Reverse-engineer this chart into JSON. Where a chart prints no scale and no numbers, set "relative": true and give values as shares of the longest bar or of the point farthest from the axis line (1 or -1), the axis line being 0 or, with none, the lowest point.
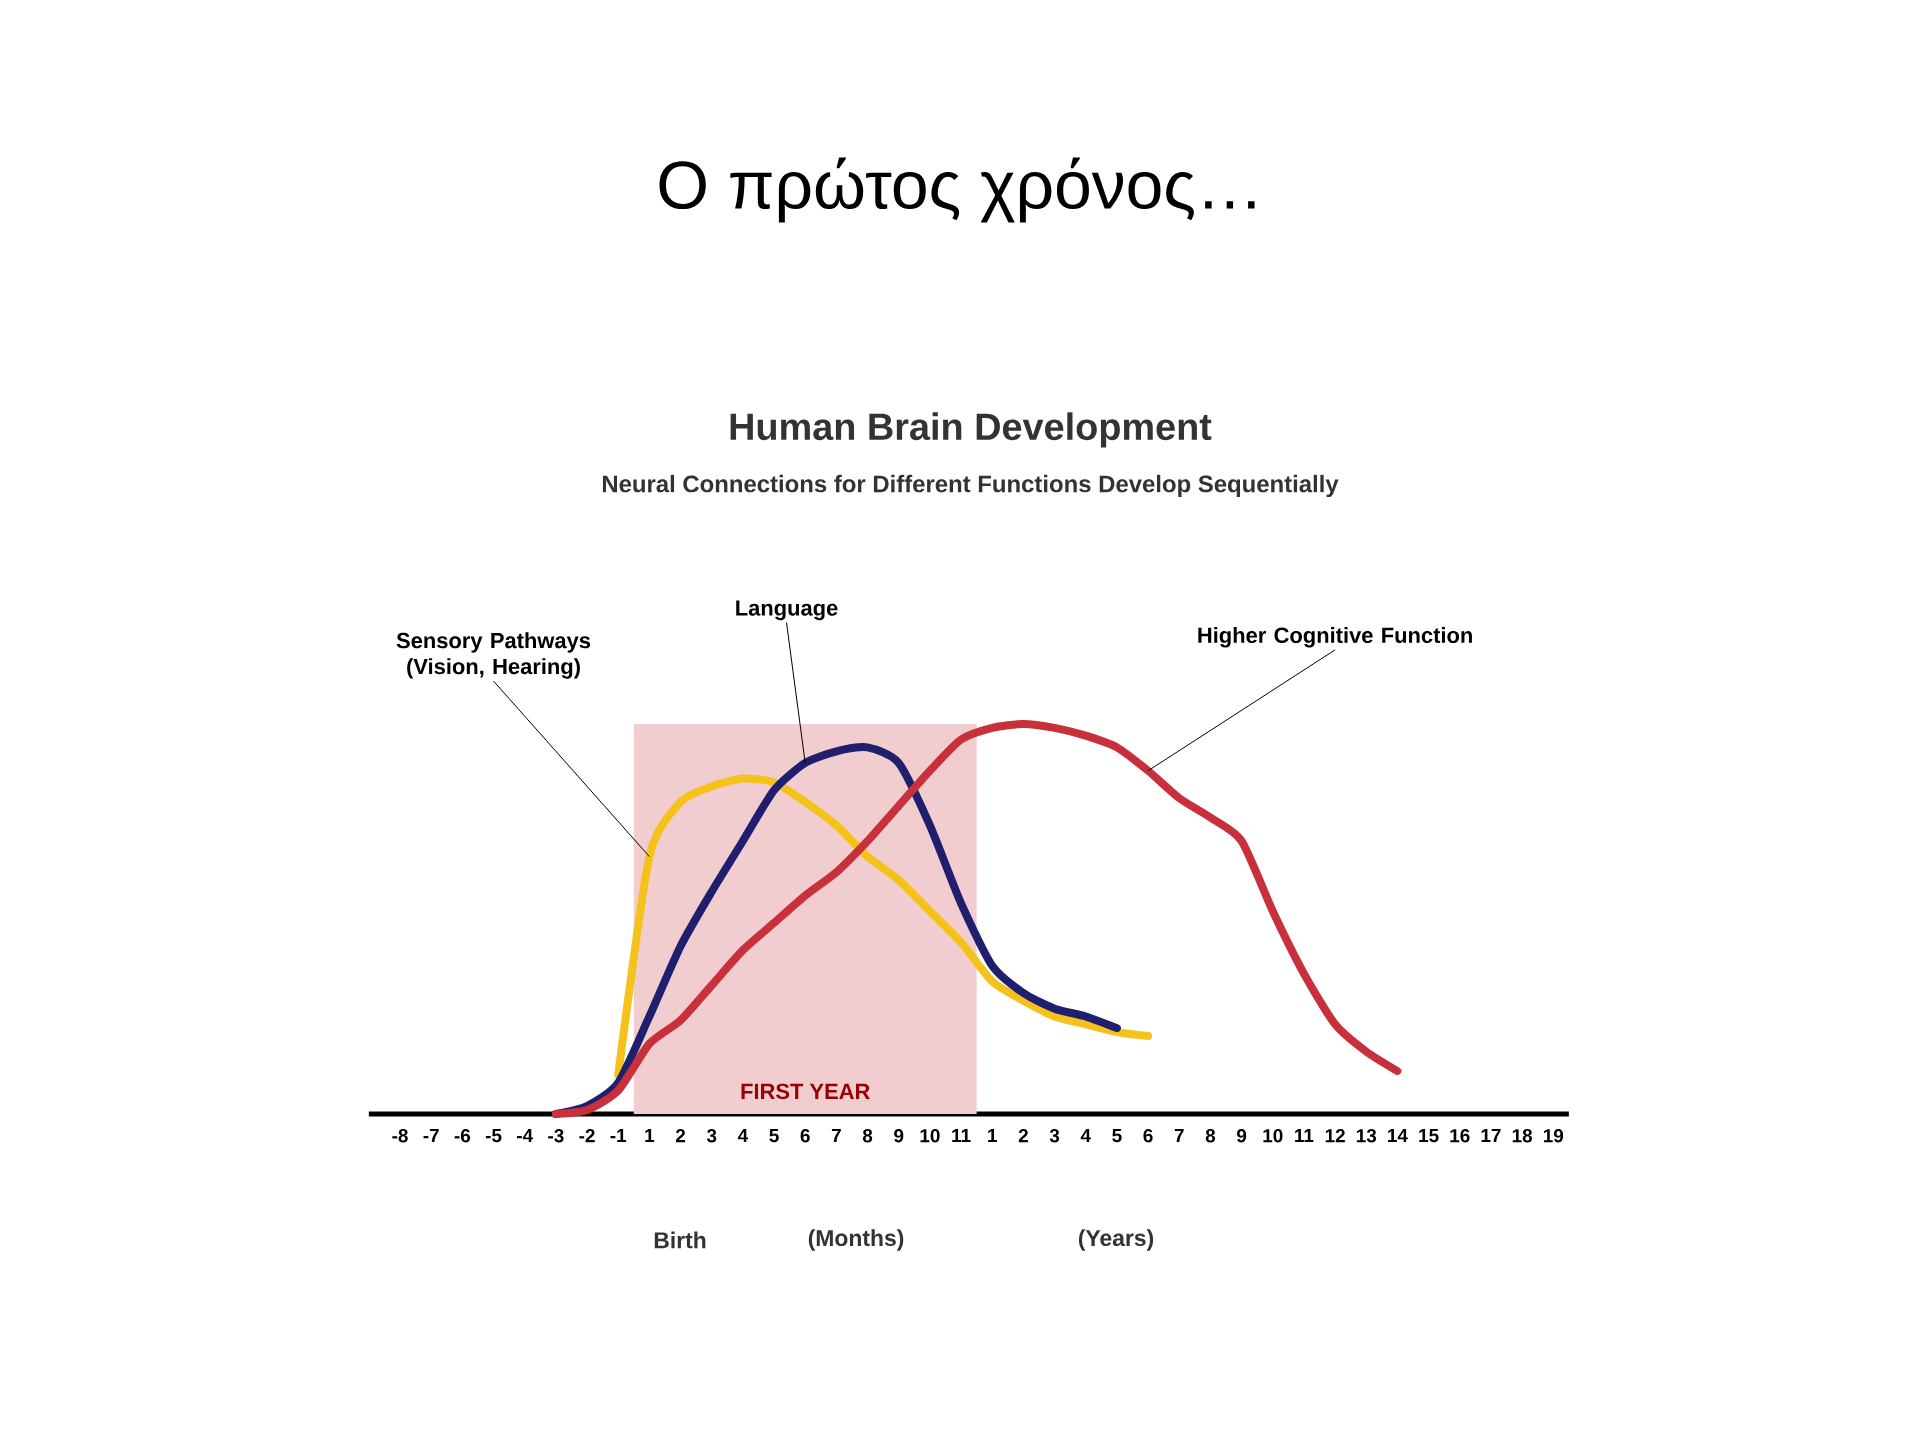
{
  "chart_data": {
    "type": "line",
    "title": "Ο πρώτος χρόνος…",
    "subtitle": "Human Brain Development",
    "annotations": [
      "Neural Connections for Different Functions Develop Sequentially",
      "Birth",
      "(Months)",
      "(Years)"
    ],
    "bands": [
      {
        "axis": "x",
        "from": "1",
        "to": "11",
        "label": "FIRST YEAR",
        "color": "#f2cdd0"
      }
    ],
    "relative": true,
    "grid": false,
    "legend": false,
    "line_style": "solid",
    "marker": "none",
    "categories": [
      "-8",
      "-7",
      "-6",
      "-5",
      "-4",
      "-3",
      "-2",
      "-1",
      "1",
      "2",
      "3",
      "4",
      "5",
      "6",
      "7",
      "8",
      "9",
      "10",
      "11",
      "1",
      "2",
      "3",
      "4",
      "5",
      "6",
      "7",
      "8",
      "9",
      "10",
      "11",
      "12",
      "13",
      "14",
      "15",
      "16",
      "17",
      "18",
      "19"
    ],
    "series": [
      {
        "name": "Sensory Pathways (Vision, Hearing)",
        "color": "#f5c21b",
        "values": [
          null,
          null,
          null,
          null,
          null,
          null,
          null,
          0.1,
          0.66,
          0.8,
          0.84,
          0.86,
          0.85,
          0.8,
          0.74,
          0.66,
          0.6,
          0.52,
          0.44,
          0.34,
          0.29,
          0.25,
          0.23,
          0.21,
          0.2,
          null,
          null,
          null,
          null,
          null,
          null,
          null,
          null,
          null,
          null,
          null,
          null,
          null
        ]
      },
      {
        "name": "Language",
        "color": "#1f1f6e",
        "values": [
          null,
          null,
          null,
          null,
          null,
          0,
          0.02,
          0.08,
          0.25,
          0.43,
          0.57,
          0.7,
          0.83,
          0.9,
          0.93,
          0.94,
          0.9,
          0.74,
          0.54,
          0.38,
          0.31,
          0.27,
          0.25,
          0.22,
          null,
          null,
          null,
          null,
          null,
          null,
          null,
          null,
          null,
          null,
          null,
          null,
          null,
          null
        ]
      },
      {
        "name": "Higher Cognitive Function",
        "color": "#c8303c",
        "values": [
          null,
          null,
          null,
          null,
          null,
          0,
          0.01,
          0.06,
          0.18,
          0.24,
          0.33,
          0.42,
          0.49,
          0.56,
          0.62,
          0.7,
          0.79,
          0.88,
          0.96,
          0.99,
          1.0,
          0.99,
          0.97,
          0.94,
          0.88,
          0.81,
          0.76,
          0.7,
          0.52,
          0.36,
          0.23,
          0.16,
          0.11,
          null,
          null,
          null,
          null,
          null
        ]
      }
    ]
  }
}
